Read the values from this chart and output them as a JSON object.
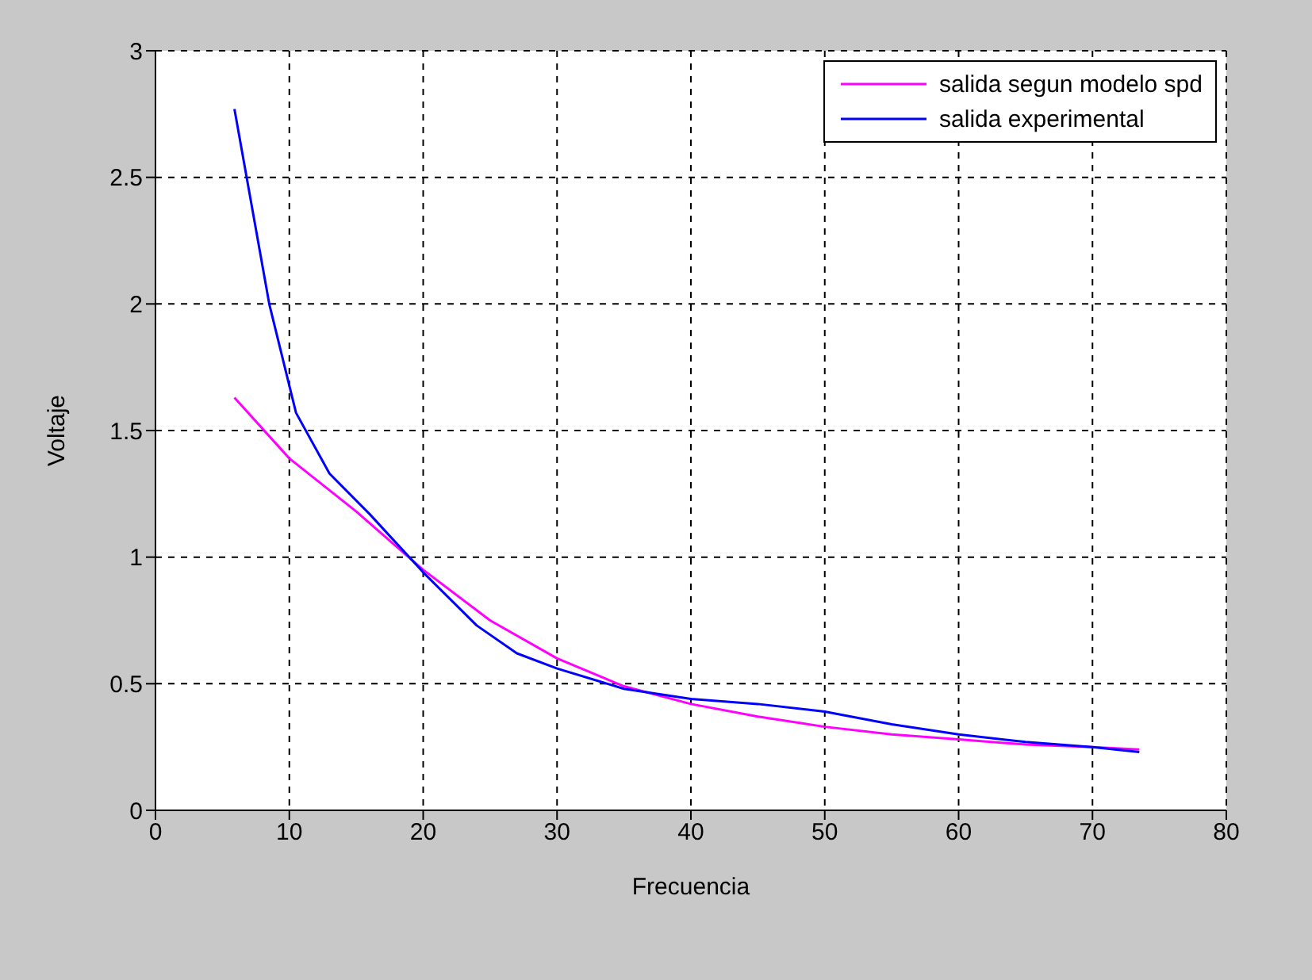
{
  "chart_data": {
    "type": "line",
    "xlabel": "Frecuencia",
    "ylabel": "Voltaje",
    "xlim": [
      0,
      80
    ],
    "xticks": [
      0,
      10,
      20,
      30,
      40,
      50,
      60,
      70,
      80
    ],
    "ylim": [
      0,
      3
    ],
    "yticks": [
      0,
      0.5,
      1,
      1.5,
      2,
      2.5,
      3
    ],
    "grid": true,
    "legend": "top right",
    "line_style": "solid",
    "marker": "none",
    "series": [
      {
        "name": "salida segun modelo spd",
        "color": "#ff00ff",
        "x": [
          5.9,
          10,
          15,
          20,
          25,
          30,
          35,
          40,
          45,
          50,
          55,
          60,
          65,
          70,
          73.5
        ],
        "values": [
          1.63,
          1.39,
          1.18,
          0.95,
          0.75,
          0.6,
          0.49,
          0.42,
          0.37,
          0.33,
          0.3,
          0.28,
          0.26,
          0.25,
          0.24
        ]
      },
      {
        "name": "salida experimental",
        "color": "#0000ff",
        "x": [
          5.9,
          8.5,
          10.5,
          13,
          16,
          20,
          24,
          27,
          30,
          35,
          40,
          45,
          50,
          55,
          60,
          65,
          70,
          73.5
        ],
        "values": [
          2.77,
          2.0,
          1.57,
          1.33,
          1.17,
          0.94,
          0.73,
          0.62,
          0.56,
          0.48,
          0.44,
          0.42,
          0.39,
          0.34,
          0.3,
          0.27,
          0.25,
          0.23
        ]
      }
    ]
  }
}
